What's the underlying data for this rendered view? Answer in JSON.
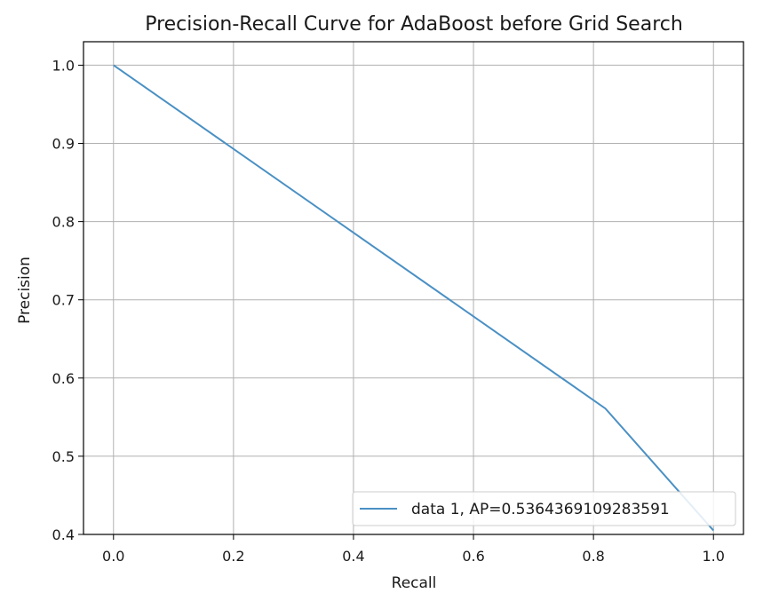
{
  "chart_data": {
    "type": "line",
    "title": "Precision-Recall Curve for AdaBoost before Grid Search",
    "xlabel": "Recall",
    "ylabel": "Precision",
    "xlim": [
      -0.05,
      1.05
    ],
    "ylim": [
      0.4,
      1.03
    ],
    "xticks": [
      0.0,
      0.2,
      0.4,
      0.6,
      0.8,
      1.0
    ],
    "xtick_labels": [
      "0.0",
      "0.2",
      "0.4",
      "0.6",
      "0.8",
      "1.0"
    ],
    "yticks": [
      0.4,
      0.5,
      0.6,
      0.7,
      0.8,
      0.9,
      1.0
    ],
    "ytick_labels": [
      "0.4",
      "0.5",
      "0.6",
      "0.7",
      "0.8",
      "0.9",
      "1.0"
    ],
    "grid": true,
    "legend_position": "lower-right",
    "series": [
      {
        "name": "data 1, AP=0.5364369109283591",
        "color": "#4a90c4",
        "x": [
          0.0,
          0.82,
          1.0
        ],
        "y": [
          1.0,
          0.561,
          0.405
        ]
      }
    ]
  }
}
